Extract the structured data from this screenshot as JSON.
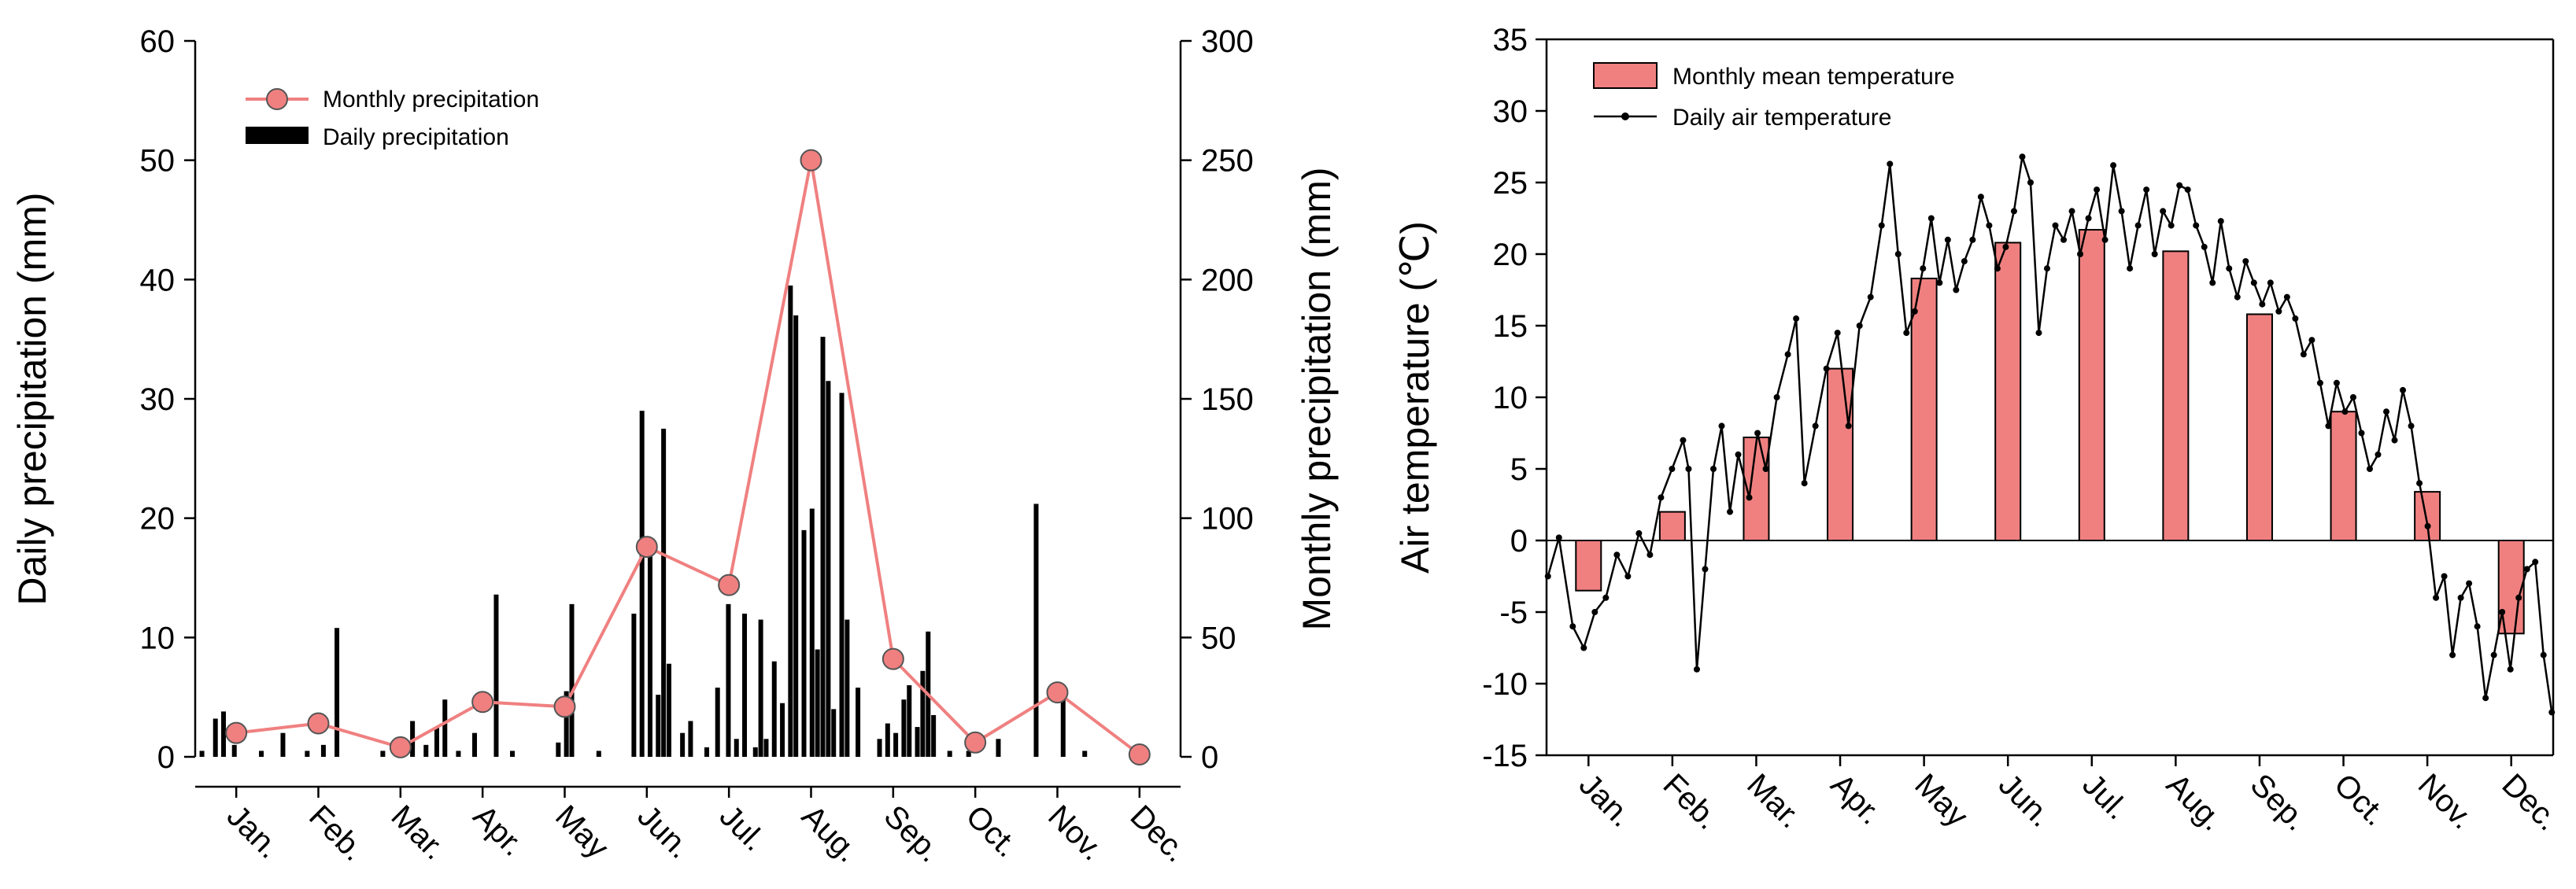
{
  "chart_data": [
    {
      "type": "bar",
      "left_axis_label": "Daily precipitation (mm)",
      "right_axis_label": "Monthly precipitation (mm)",
      "left_ylim": [
        0,
        60
      ],
      "left_ticks": [
        "0",
        "10",
        "20",
        "30",
        "40",
        "50",
        "60"
      ],
      "right_ylim": [
        0,
        300
      ],
      "right_ticks": [
        "0",
        "50",
        "100",
        "150",
        "200",
        "250",
        "300"
      ],
      "months": [
        "Jan.",
        "Feb.",
        "Mar.",
        "Apr.",
        "May",
        "Jun.",
        "Jul.",
        "Aug.",
        "Sep.",
        "Oct.",
        "Nov.",
        "Dec."
      ],
      "legend": [
        "Monthly precipitation",
        "Daily precipitation"
      ],
      "colors": {
        "monthly": "#f08080",
        "daily": "#000000"
      },
      "series": [
        {
          "name": "Monthly precipitation",
          "axis": "right",
          "values": [
            10,
            14,
            4,
            23,
            21,
            88,
            72,
            250,
            41,
            6,
            27,
            1
          ]
        },
        {
          "name": "Daily precipitation",
          "axis": "left",
          "points": [
            {
              "day": 3,
              "value": 0.5
            },
            {
              "day": 8,
              "value": 3.2
            },
            {
              "day": 11,
              "value": 3.8
            },
            {
              "day": 15,
              "value": 1.0
            },
            {
              "day": 25,
              "value": 0.5
            },
            {
              "day": 33,
              "value": 2.0
            },
            {
              "day": 42,
              "value": 0.5
            },
            {
              "day": 48,
              "value": 1.0
            },
            {
              "day": 53,
              "value": 10.8
            },
            {
              "day": 70,
              "value": 0.5
            },
            {
              "day": 76,
              "value": 1.5
            },
            {
              "day": 81,
              "value": 3.0
            },
            {
              "day": 86,
              "value": 1.0
            },
            {
              "day": 90,
              "value": 2.5
            },
            {
              "day": 93,
              "value": 4.8
            },
            {
              "day": 98,
              "value": 0.5
            },
            {
              "day": 104,
              "value": 2.0
            },
            {
              "day": 112,
              "value": 13.6
            },
            {
              "day": 118,
              "value": 0.5
            },
            {
              "day": 135,
              "value": 1.2
            },
            {
              "day": 138,
              "value": 5.5
            },
            {
              "day": 140,
              "value": 12.8
            },
            {
              "day": 150,
              "value": 0.5
            },
            {
              "day": 163,
              "value": 12.0
            },
            {
              "day": 166,
              "value": 29.0
            },
            {
              "day": 169,
              "value": 17.0
            },
            {
              "day": 172,
              "value": 5.2
            },
            {
              "day": 174,
              "value": 27.5
            },
            {
              "day": 176,
              "value": 7.8
            },
            {
              "day": 181,
              "value": 2.0
            },
            {
              "day": 184,
              "value": 3.0
            },
            {
              "day": 190,
              "value": 0.8
            },
            {
              "day": 194,
              "value": 5.8
            },
            {
              "day": 198,
              "value": 12.8
            },
            {
              "day": 201,
              "value": 1.5
            },
            {
              "day": 204,
              "value": 12.0
            },
            {
              "day": 208,
              "value": 0.8
            },
            {
              "day": 210,
              "value": 11.5
            },
            {
              "day": 212,
              "value": 1.5
            },
            {
              "day": 215,
              "value": 8.0
            },
            {
              "day": 218,
              "value": 4.5
            },
            {
              "day": 221,
              "value": 39.5
            },
            {
              "day": 223,
              "value": 37.0
            },
            {
              "day": 226,
              "value": 19.0
            },
            {
              "day": 229,
              "value": 20.8
            },
            {
              "day": 231,
              "value": 9.0
            },
            {
              "day": 233,
              "value": 35.2
            },
            {
              "day": 235,
              "value": 31.5
            },
            {
              "day": 237,
              "value": 4.0
            },
            {
              "day": 240,
              "value": 30.5
            },
            {
              "day": 242,
              "value": 11.5
            },
            {
              "day": 246,
              "value": 5.8
            },
            {
              "day": 254,
              "value": 1.5
            },
            {
              "day": 257,
              "value": 2.8
            },
            {
              "day": 260,
              "value": 2.0
            },
            {
              "day": 263,
              "value": 4.8
            },
            {
              "day": 265,
              "value": 6.0
            },
            {
              "day": 268,
              "value": 2.5
            },
            {
              "day": 270,
              "value": 7.2
            },
            {
              "day": 272,
              "value": 10.5
            },
            {
              "day": 274,
              "value": 3.5
            },
            {
              "day": 280,
              "value": 0.5
            },
            {
              "day": 287,
              "value": 0.5
            },
            {
              "day": 298,
              "value": 1.5
            },
            {
              "day": 312,
              "value": 21.2
            },
            {
              "day": 322,
              "value": 5.0
            },
            {
              "day": 330,
              "value": 0.5
            }
          ]
        }
      ]
    },
    {
      "type": "bar",
      "ylabel": "Air temperature (℃)",
      "ylim": [
        -15,
        35
      ],
      "yticks": [
        "-15",
        "-10",
        "-5",
        "0",
        "5",
        "10",
        "15",
        "20",
        "25",
        "30",
        "35"
      ],
      "months": [
        "Jan.",
        "Feb.",
        "Mar.",
        "Apr.",
        "May",
        "Jun.",
        "Jul.",
        "Aug.",
        "Sep.",
        "Oct.",
        "Nov.",
        "Dec."
      ],
      "legend": [
        "Monthly mean temperature",
        "Daily air temperature"
      ],
      "colors": {
        "bar": "#f08080",
        "line": "#000000"
      },
      "series": [
        {
          "name": "Monthly mean temperature",
          "values": [
            -3.5,
            2.0,
            7.2,
            12.0,
            18.3,
            20.8,
            21.7,
            20.2,
            15.8,
            9.0,
            3.4,
            -6.5
          ]
        },
        {
          "name": "Daily air temperature",
          "points": [
            {
              "day": 1,
              "value": -2.5
            },
            {
              "day": 5,
              "value": 0.2
            },
            {
              "day": 10,
              "value": -6.0
            },
            {
              "day": 14,
              "value": -7.5
            },
            {
              "day": 18,
              "value": -5.0
            },
            {
              "day": 22,
              "value": -4.0
            },
            {
              "day": 26,
              "value": -1.0
            },
            {
              "day": 30,
              "value": -2.5
            },
            {
              "day": 34,
              "value": 0.5
            },
            {
              "day": 38,
              "value": -1.0
            },
            {
              "day": 42,
              "value": 3.0
            },
            {
              "day": 46,
              "value": 5.0
            },
            {
              "day": 50,
              "value": 7.0
            },
            {
              "day": 52,
              "value": 5.0
            },
            {
              "day": 55,
              "value": -9.0
            },
            {
              "day": 58,
              "value": -2.0
            },
            {
              "day": 61,
              "value": 5.0
            },
            {
              "day": 64,
              "value": 8.0
            },
            {
              "day": 67,
              "value": 2.0
            },
            {
              "day": 70,
              "value": 6.0
            },
            {
              "day": 74,
              "value": 3.0
            },
            {
              "day": 77,
              "value": 7.5
            },
            {
              "day": 80,
              "value": 5.0
            },
            {
              "day": 84,
              "value": 10.0
            },
            {
              "day": 88,
              "value": 13.0
            },
            {
              "day": 91,
              "value": 15.5
            },
            {
              "day": 94,
              "value": 4.0
            },
            {
              "day": 98,
              "value": 8.0
            },
            {
              "day": 102,
              "value": 12.0
            },
            {
              "day": 106,
              "value": 14.5
            },
            {
              "day": 110,
              "value": 8.0
            },
            {
              "day": 114,
              "value": 15.0
            },
            {
              "day": 118,
              "value": 17.0
            },
            {
              "day": 122,
              "value": 22.0
            },
            {
              "day": 125,
              "value": 26.3
            },
            {
              "day": 128,
              "value": 20.0
            },
            {
              "day": 131,
              "value": 14.5
            },
            {
              "day": 134,
              "value": 16.0
            },
            {
              "day": 137,
              "value": 19.0
            },
            {
              "day": 140,
              "value": 22.5
            },
            {
              "day": 143,
              "value": 18.0
            },
            {
              "day": 146,
              "value": 21.0
            },
            {
              "day": 149,
              "value": 17.5
            },
            {
              "day": 152,
              "value": 19.5
            },
            {
              "day": 155,
              "value": 21.0
            },
            {
              "day": 158,
              "value": 24.0
            },
            {
              "day": 161,
              "value": 22.0
            },
            {
              "day": 164,
              "value": 19.0
            },
            {
              "day": 167,
              "value": 20.5
            },
            {
              "day": 170,
              "value": 23.0
            },
            {
              "day": 173,
              "value": 26.8
            },
            {
              "day": 176,
              "value": 25.0
            },
            {
              "day": 179,
              "value": 14.5
            },
            {
              "day": 182,
              "value": 19.0
            },
            {
              "day": 185,
              "value": 22.0
            },
            {
              "day": 188,
              "value": 21.0
            },
            {
              "day": 191,
              "value": 23.0
            },
            {
              "day": 194,
              "value": 20.0
            },
            {
              "day": 197,
              "value": 22.5
            },
            {
              "day": 200,
              "value": 24.5
            },
            {
              "day": 203,
              "value": 21.0
            },
            {
              "day": 206,
              "value": 26.2
            },
            {
              "day": 209,
              "value": 23.0
            },
            {
              "day": 212,
              "value": 19.0
            },
            {
              "day": 215,
              "value": 22.0
            },
            {
              "day": 218,
              "value": 24.5
            },
            {
              "day": 221,
              "value": 20.0
            },
            {
              "day": 224,
              "value": 23.0
            },
            {
              "day": 227,
              "value": 22.0
            },
            {
              "day": 230,
              "value": 24.8
            },
            {
              "day": 233,
              "value": 24.5
            },
            {
              "day": 236,
              "value": 22.0
            },
            {
              "day": 239,
              "value": 20.5
            },
            {
              "day": 242,
              "value": 18.0
            },
            {
              "day": 245,
              "value": 22.3
            },
            {
              "day": 248,
              "value": 19.0
            },
            {
              "day": 251,
              "value": 17.0
            },
            {
              "day": 254,
              "value": 19.5
            },
            {
              "day": 257,
              "value": 18.0
            },
            {
              "day": 260,
              "value": 16.5
            },
            {
              "day": 263,
              "value": 18.0
            },
            {
              "day": 266,
              "value": 16.0
            },
            {
              "day": 269,
              "value": 17.0
            },
            {
              "day": 272,
              "value": 15.5
            },
            {
              "day": 275,
              "value": 13.0
            },
            {
              "day": 278,
              "value": 14.0
            },
            {
              "day": 281,
              "value": 11.0
            },
            {
              "day": 284,
              "value": 8.0
            },
            {
              "day": 287,
              "value": 11.0
            },
            {
              "day": 290,
              "value": 9.0
            },
            {
              "day": 293,
              "value": 10.0
            },
            {
              "day": 296,
              "value": 7.5
            },
            {
              "day": 299,
              "value": 5.0
            },
            {
              "day": 302,
              "value": 6.0
            },
            {
              "day": 305,
              "value": 9.0
            },
            {
              "day": 308,
              "value": 7.0
            },
            {
              "day": 311,
              "value": 10.5
            },
            {
              "day": 314,
              "value": 8.0
            },
            {
              "day": 317,
              "value": 4.0
            },
            {
              "day": 320,
              "value": 1.0
            },
            {
              "day": 323,
              "value": -4.0
            },
            {
              "day": 326,
              "value": -2.5
            },
            {
              "day": 329,
              "value": -8.0
            },
            {
              "day": 332,
              "value": -4.0
            },
            {
              "day": 335,
              "value": -3.0
            },
            {
              "day": 338,
              "value": -6.0
            },
            {
              "day": 341,
              "value": -11.0
            },
            {
              "day": 344,
              "value": -8.0
            },
            {
              "day": 347,
              "value": -5.0
            },
            {
              "day": 350,
              "value": -9.0
            },
            {
              "day": 353,
              "value": -4.0
            },
            {
              "day": 356,
              "value": -2.0
            },
            {
              "day": 359,
              "value": -1.5
            },
            {
              "day": 362,
              "value": -8.0
            },
            {
              "day": 365,
              "value": -12.0
            }
          ]
        }
      ]
    }
  ]
}
